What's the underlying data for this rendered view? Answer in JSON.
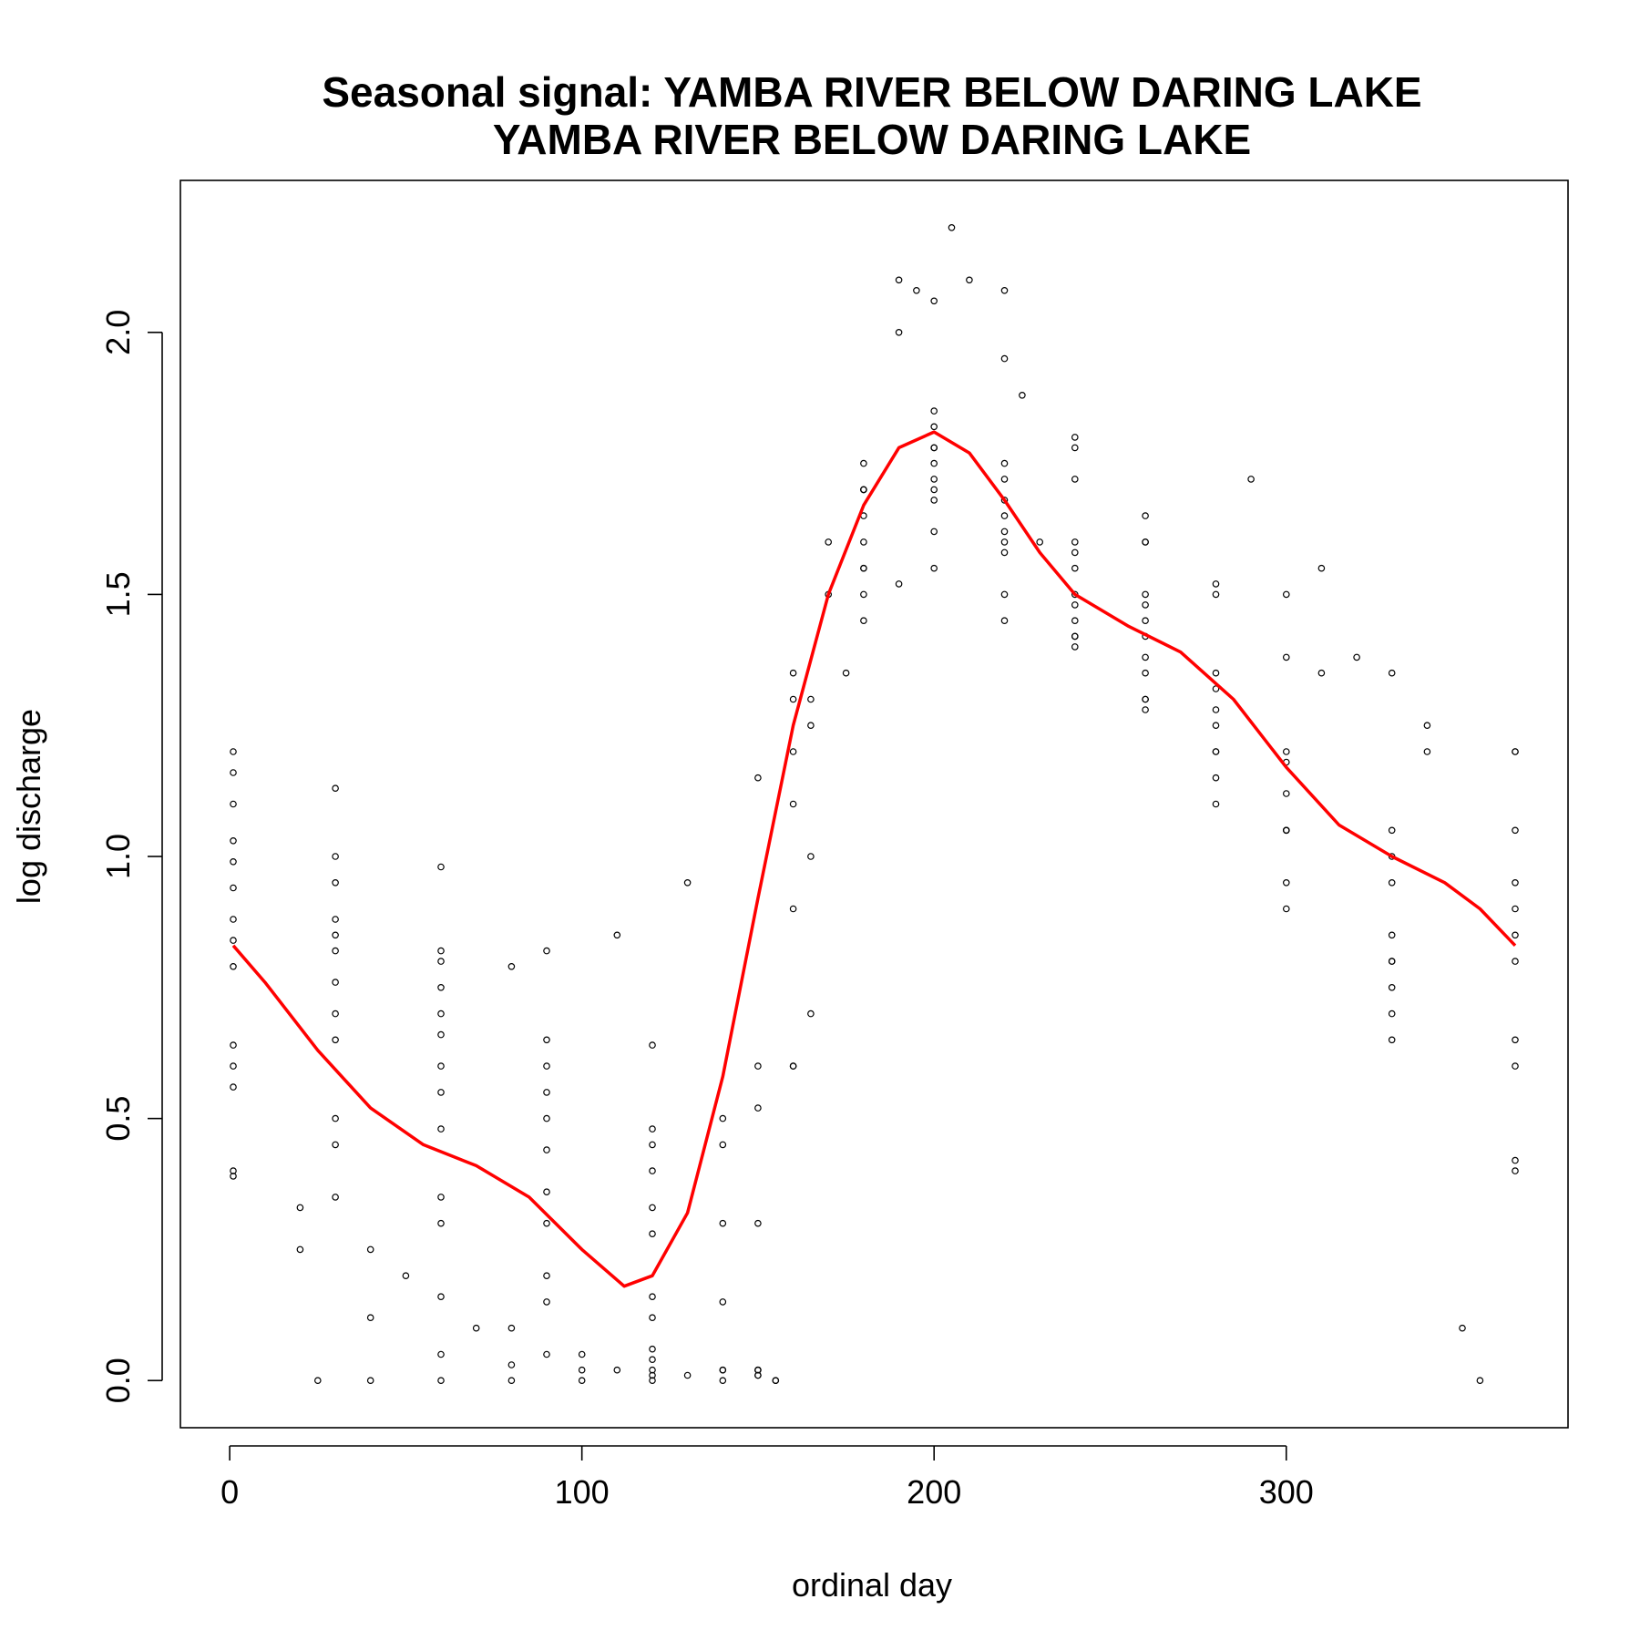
{
  "chart_data": {
    "type": "scatter",
    "title_line1": "Seasonal signal: YAMBA RIVER BELOW DARING LAKE",
    "title_line2": "YAMBA RIVER BELOW DARING LAKE",
    "xlabel": "ordinal day",
    "ylabel": "log discharge",
    "xlim": [
      -14,
      380
    ],
    "ylim": [
      -0.09,
      2.29
    ],
    "x_ticks": [
      0,
      100,
      200,
      300
    ],
    "x_tick_labels": [
      "0",
      "100",
      "200",
      "300"
    ],
    "y_ticks": [
      0.0,
      0.5,
      1.0,
      1.5,
      2.0
    ],
    "y_tick_labels": [
      "0.0",
      "0.5",
      "1.0",
      "1.5",
      "2.0"
    ],
    "grid": false,
    "legend": "none",
    "colors": {
      "points": "#000000",
      "smooth": "#ff0000"
    },
    "series": [
      {
        "style": "points",
        "x": [
          1,
          30,
          60,
          90,
          120,
          150,
          165,
          180,
          195,
          210,
          225,
          240,
          260,
          280,
          300,
          320,
          340,
          365
        ],
        "y": [
          1.2,
          1.13,
          0.98,
          0.82,
          0.64,
          0.52,
          0.7,
          1.55,
          2.08,
          2.1,
          1.88,
          1.72,
          1.6,
          1.52,
          1.5,
          1.38,
          1.25,
          1.2
        ]
      },
      {
        "style": "points",
        "x": [
          1,
          30,
          60,
          80,
          110,
          130,
          150,
          170,
          190,
          205,
          220,
          240,
          260,
          290,
          310,
          330,
          365
        ],
        "y": [
          1.16,
          1.0,
          0.82,
          0.79,
          0.85,
          0.95,
          1.15,
          1.6,
          2.1,
          2.2,
          2.08,
          1.78,
          1.65,
          1.72,
          1.55,
          1.35,
          1.2
        ]
      },
      {
        "style": "points",
        "x": [
          1,
          30,
          60,
          90,
          120,
          150,
          170,
          190,
          200,
          220,
          240,
          260,
          280,
          310,
          340,
          365
        ],
        "y": [
          1.1,
          0.95,
          0.8,
          0.65,
          0.48,
          0.6,
          1.5,
          2.0,
          2.06,
          1.95,
          1.8,
          1.6,
          1.5,
          1.35,
          1.2,
          1.05
        ]
      },
      {
        "style": "points",
        "x": [
          1,
          30,
          60,
          90,
          120,
          140,
          160,
          180,
          200,
          220,
          240,
          260,
          280,
          300,
          330,
          365
        ],
        "y": [
          1.03,
          0.88,
          0.75,
          0.6,
          0.45,
          0.5,
          1.2,
          1.7,
          1.85,
          1.75,
          1.6,
          1.48,
          1.35,
          1.2,
          1.05,
          0.95
        ]
      },
      {
        "style": "points",
        "x": [
          1,
          30,
          60,
          90,
          120,
          140,
          160,
          180,
          200,
          220,
          240,
          260,
          280,
          300,
          330,
          365
        ],
        "y": [
          0.99,
          0.85,
          0.7,
          0.55,
          0.4,
          0.45,
          1.35,
          1.75,
          1.82,
          1.72,
          1.58,
          1.45,
          1.32,
          1.18,
          1.0,
          0.9
        ]
      },
      {
        "style": "points",
        "x": [
          1,
          30,
          60,
          90,
          120,
          140,
          160,
          180,
          200,
          220,
          240,
          260,
          280,
          300,
          330,
          365
        ],
        "y": [
          0.94,
          0.82,
          0.66,
          0.5,
          0.33,
          0.3,
          1.3,
          1.7,
          1.78,
          1.68,
          1.55,
          1.42,
          1.28,
          1.12,
          0.95,
          0.85
        ]
      },
      {
        "style": "points",
        "x": [
          1,
          30,
          60,
          90,
          120,
          140,
          160,
          180,
          200,
          220,
          240,
          260,
          280,
          300,
          330,
          365
        ],
        "y": [
          0.88,
          0.76,
          0.6,
          0.44,
          0.28,
          0.15,
          1.1,
          1.65,
          1.75,
          1.65,
          1.5,
          1.38,
          1.25,
          1.05,
          0.85,
          0.8
        ]
      },
      {
        "style": "points",
        "x": [
          1,
          30,
          60,
          90,
          120,
          150,
          160,
          180,
          200,
          220,
          240,
          260,
          280,
          300,
          330,
          365
        ],
        "y": [
          0.84,
          0.7,
          0.55,
          0.36,
          0.16,
          0.02,
          0.9,
          1.6,
          1.72,
          1.62,
          1.48,
          1.35,
          1.2,
          1.05,
          0.8,
          0.65
        ]
      },
      {
        "style": "points",
        "x": [
          1,
          30,
          60,
          90,
          120,
          150,
          160,
          180,
          200,
          220,
          240,
          260,
          280,
          300,
          330,
          365
        ],
        "y": [
          0.79,
          0.65,
          0.48,
          0.3,
          0.12,
          0.02,
          0.6,
          1.5,
          1.7,
          1.6,
          1.45,
          1.3,
          1.15,
          0.95,
          0.75,
          0.6
        ]
      },
      {
        "style": "points",
        "x": [
          1,
          30,
          60,
          90,
          120,
          150,
          165,
          180,
          200,
          220,
          240,
          260,
          280,
          300,
          330,
          365
        ],
        "y": [
          0.64,
          0.5,
          0.35,
          0.2,
          0.06,
          0.01,
          1.3,
          1.55,
          1.68,
          1.58,
          1.42,
          1.28,
          1.1,
          0.9,
          0.65,
          0.42
        ]
      },
      {
        "style": "points",
        "x": [
          1,
          30,
          60,
          90,
          120,
          150,
          165,
          180,
          200,
          220,
          240,
          260,
          280,
          300,
          330,
          365
        ],
        "y": [
          0.6,
          0.45,
          0.3,
          0.15,
          0.04,
          0.01,
          1.25,
          1.45,
          1.62,
          1.5,
          1.4,
          1.3,
          1.2,
          1.05,
          0.8,
          0.4
        ]
      },
      {
        "style": "points",
        "x": [
          1,
          30,
          50,
          70,
          90,
          110,
          130,
          150,
          160,
          175,
          190,
          200,
          220,
          240
        ],
        "y": [
          0.56,
          0.35,
          0.2,
          0.1,
          0.05,
          0.02,
          0.01,
          0.02,
          0.6,
          1.35,
          1.52,
          1.55,
          1.45,
          1.42
        ]
      },
      {
        "style": "points",
        "x": [
          1,
          20,
          40,
          60,
          80,
          100,
          120,
          140,
          150,
          165,
          180,
          200,
          230,
          260,
          300,
          330,
          350,
          355
        ],
        "y": [
          0.4,
          0.33,
          0.25,
          0.16,
          0.1,
          0.05,
          0.02,
          0.02,
          0.3,
          1.0,
          1.7,
          1.78,
          1.6,
          1.5,
          1.38,
          0.7,
          0.1,
          0.0
        ]
      },
      {
        "style": "points",
        "x": [
          1,
          20,
          40,
          60,
          80,
          100,
          120,
          140,
          155
        ],
        "y": [
          0.39,
          0.25,
          0.12,
          0.05,
          0.03,
          0.02,
          0.01,
          0.02,
          0.0
        ]
      },
      {
        "style": "points",
        "x": [
          25,
          40,
          60,
          80,
          100,
          120,
          140,
          155
        ],
        "y": [
          0.0,
          0.0,
          0.0,
          0.0,
          0.0,
          0.0,
          0.0,
          0.0
        ]
      },
      {
        "style": "line",
        "x": [
          1,
          10,
          25,
          40,
          55,
          70,
          85,
          100,
          112,
          120,
          130,
          140,
          150,
          160,
          170,
          180,
          190,
          200,
          210,
          220,
          230,
          240,
          255,
          270,
          285,
          300,
          315,
          330,
          345,
          355,
          365
        ],
        "y": [
          0.83,
          0.76,
          0.63,
          0.52,
          0.45,
          0.41,
          0.35,
          0.25,
          0.18,
          0.2,
          0.32,
          0.58,
          0.92,
          1.25,
          1.5,
          1.67,
          1.78,
          1.81,
          1.77,
          1.68,
          1.58,
          1.5,
          1.44,
          1.39,
          1.3,
          1.17,
          1.06,
          1.0,
          0.95,
          0.9,
          0.83
        ]
      }
    ]
  }
}
